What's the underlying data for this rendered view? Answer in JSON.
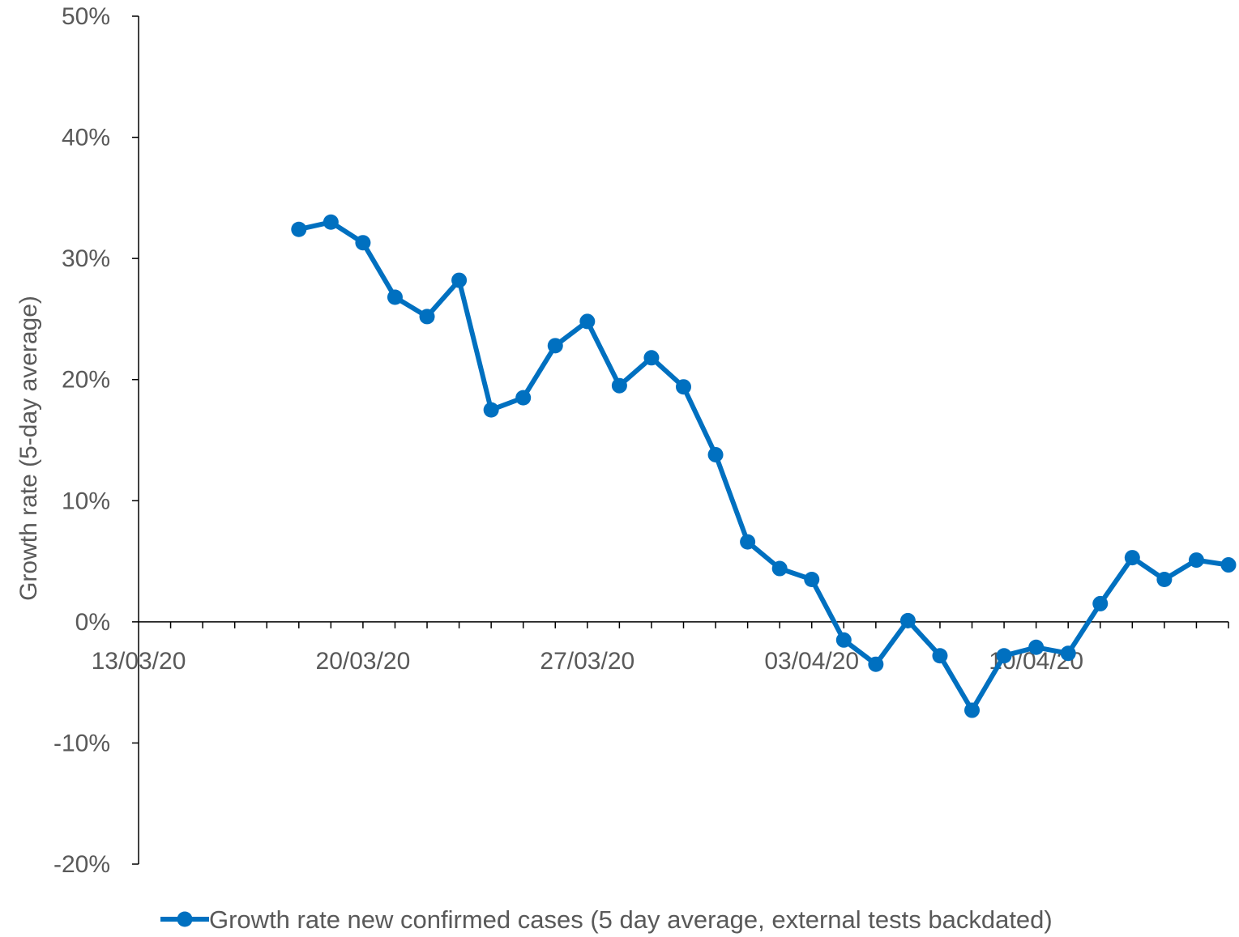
{
  "chart_data": {
    "type": "line",
    "ylabel": "Growth rate (5-day average)",
    "xlabel": "",
    "ylim": [
      -0.2,
      0.5
    ],
    "yticks": [
      -0.2,
      -0.1,
      0,
      0.1,
      0.2,
      0.3,
      0.4,
      0.5
    ],
    "ytick_labels": [
      "-20%",
      "-10%",
      "0%",
      "10%",
      "20%",
      "30%",
      "40%",
      "50%"
    ],
    "xlim": [
      "2020-03-13",
      "2020-04-16"
    ],
    "xticks": [
      "2020-03-13",
      "2020-03-20",
      "2020-03-27",
      "2020-04-03",
      "2020-04-10"
    ],
    "xtick_labels": [
      "13/03/20",
      "20/03/20",
      "27/03/20",
      "03/04/20",
      "10/04/20"
    ],
    "grid": false,
    "legend_position": "bottom",
    "series": [
      {
        "name": "Growth rate new confirmed cases (5 day average, external tests backdated)",
        "color": "#0070c0",
        "x": [
          "2020-03-18",
          "2020-03-19",
          "2020-03-20",
          "2020-03-21",
          "2020-03-22",
          "2020-03-23",
          "2020-03-24",
          "2020-03-25",
          "2020-03-26",
          "2020-03-27",
          "2020-03-28",
          "2020-03-29",
          "2020-03-30",
          "2020-03-31",
          "2020-04-01",
          "2020-04-02",
          "2020-04-03",
          "2020-04-04",
          "2020-04-05",
          "2020-04-06",
          "2020-04-07",
          "2020-04-08",
          "2020-04-09",
          "2020-04-10",
          "2020-04-11",
          "2020-04-12",
          "2020-04-13",
          "2020-04-14",
          "2020-04-15",
          "2020-04-16"
        ],
        "values": [
          0.324,
          0.33,
          0.313,
          0.268,
          0.252,
          0.282,
          0.175,
          0.185,
          0.228,
          0.248,
          0.195,
          0.218,
          0.194,
          0.138,
          0.066,
          0.044,
          0.035,
          -0.015,
          -0.035,
          0.001,
          -0.028,
          -0.073,
          -0.028,
          -0.021,
          -0.026,
          0.015,
          0.053,
          0.035,
          0.051,
          0.047
        ]
      }
    ]
  }
}
